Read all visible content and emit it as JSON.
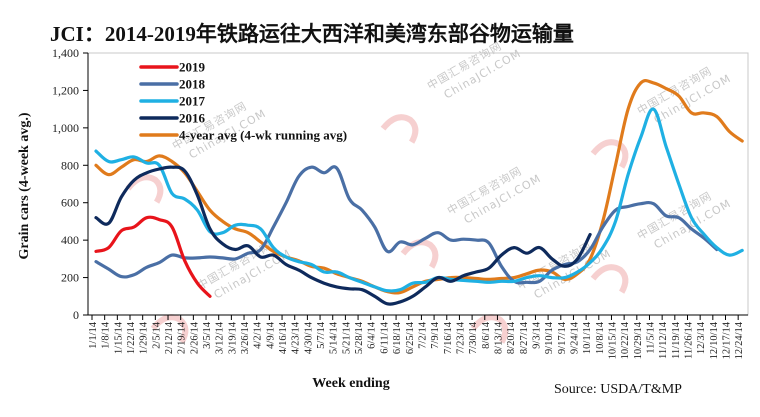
{
  "chart_data": {
    "type": "line",
    "title": "JCI：2014-2019年铁路运往大西洋和美湾东部谷物运输量",
    "xlabel": "Week ending",
    "ylabel": "Grain cars (4-week avg.)",
    "source": "Source: USDA/T&MP",
    "ylim": [
      0,
      1400
    ],
    "yticks": [
      0,
      200,
      400,
      600,
      800,
      1000,
      1200,
      1400
    ],
    "ytick_labels": [
      "0",
      "200",
      "400",
      "600",
      "800",
      "1,000",
      "1,200",
      "1,400"
    ],
    "grid": false,
    "legend_position": "top-left",
    "categories": [
      "1/1/14",
      "1/8/14",
      "1/15/14",
      "1/22/14",
      "1/29/14",
      "2/5/14",
      "2/12/14",
      "2/19/14",
      "2/26/14",
      "3/5/14",
      "3/12/14",
      "3/19/14",
      "3/26/14",
      "4/2/14",
      "4/9/14",
      "4/16/14",
      "4/23/14",
      "4/30/14",
      "5/7/14",
      "5/14/14",
      "5/21/14",
      "5/28/14",
      "6/4/14",
      "6/11/14",
      "6/18/14",
      "6/25/14",
      "7/2/14",
      "7/9/14",
      "7/16/14",
      "7/23/14",
      "7/30/14",
      "8/6/14",
      "8/13/14",
      "8/20/14",
      "8/27/14",
      "9/3/14",
      "9/10/14",
      "9/17/14",
      "9/24/14",
      "10/1/14",
      "10/8/14",
      "10/15/14",
      "10/22/14",
      "10/29/14",
      "11/5/14",
      "11/12/14",
      "11/19/14",
      "11/26/14",
      "12/3/14",
      "12/10/14",
      "12/17/14",
      "12/24/14"
    ],
    "series": [
      {
        "name": "2019",
        "color": "#e8141b",
        "values": [
          340,
          360,
          450,
          470,
          520,
          510,
          470,
          290,
          170,
          100
        ]
      },
      {
        "name": "2018",
        "color": "#4a6fa5",
        "values": [
          285,
          245,
          205,
          215,
          255,
          280,
          320,
          305,
          305,
          310,
          305,
          300,
          330,
          350,
          470,
          600,
          740,
          790,
          760,
          785,
          620,
          560,
          470,
          340,
          390,
          375,
          410,
          440,
          400,
          405,
          400,
          385,
          260,
          180,
          175,
          180,
          240,
          270,
          285,
          350,
          470,
          560,
          580,
          595,
          595,
          530,
          520,
          460,
          410,
          350
        ]
      },
      {
        "name": "2017",
        "color": "#1fb0e3",
        "values": [
          876,
          820,
          830,
          845,
          812,
          800,
          650,
          620,
          560,
          445,
          440,
          480,
          480,
          460,
          360,
          310,
          285,
          270,
          230,
          230,
          200,
          175,
          150,
          130,
          135,
          170,
          175,
          200,
          190,
          185,
          180,
          175,
          180,
          180,
          200,
          210,
          200,
          200,
          230,
          280,
          360,
          500,
          750,
          950,
          1100,
          900,
          700,
          520,
          430,
          360,
          320,
          345
        ]
      },
      {
        "name": "2016",
        "color": "#0e2a5c",
        "values": [
          520,
          490,
          630,
          720,
          760,
          780,
          790,
          770,
          640,
          460,
          380,
          350,
          370,
          310,
          320,
          270,
          240,
          200,
          170,
          150,
          140,
          135,
          100,
          60,
          70,
          100,
          150,
          200,
          180,
          210,
          230,
          250,
          320,
          360,
          330,
          360,
          300,
          260,
          300,
          430
        ]
      },
      {
        "name": "4-year avg (4-wk running avg)",
        "color": "#e07b1c",
        "values": [
          800,
          750,
          790,
          830,
          820,
          850,
          820,
          760,
          660,
          560,
          500,
          460,
          440,
          390,
          340,
          310,
          290,
          260,
          250,
          220,
          200,
          180,
          150,
          125,
          120,
          150,
          180,
          190,
          200,
          200,
          195,
          190,
          195,
          200,
          220,
          240,
          230,
          190,
          220,
          300,
          500,
          800,
          1100,
          1240,
          1240,
          1210,
          1170,
          1080,
          1080,
          1060,
          980,
          930
        ]
      }
    ]
  },
  "watermark": {
    "line1": "中国汇易咨询网",
    "line2": "ChinaJCI.COM"
  }
}
